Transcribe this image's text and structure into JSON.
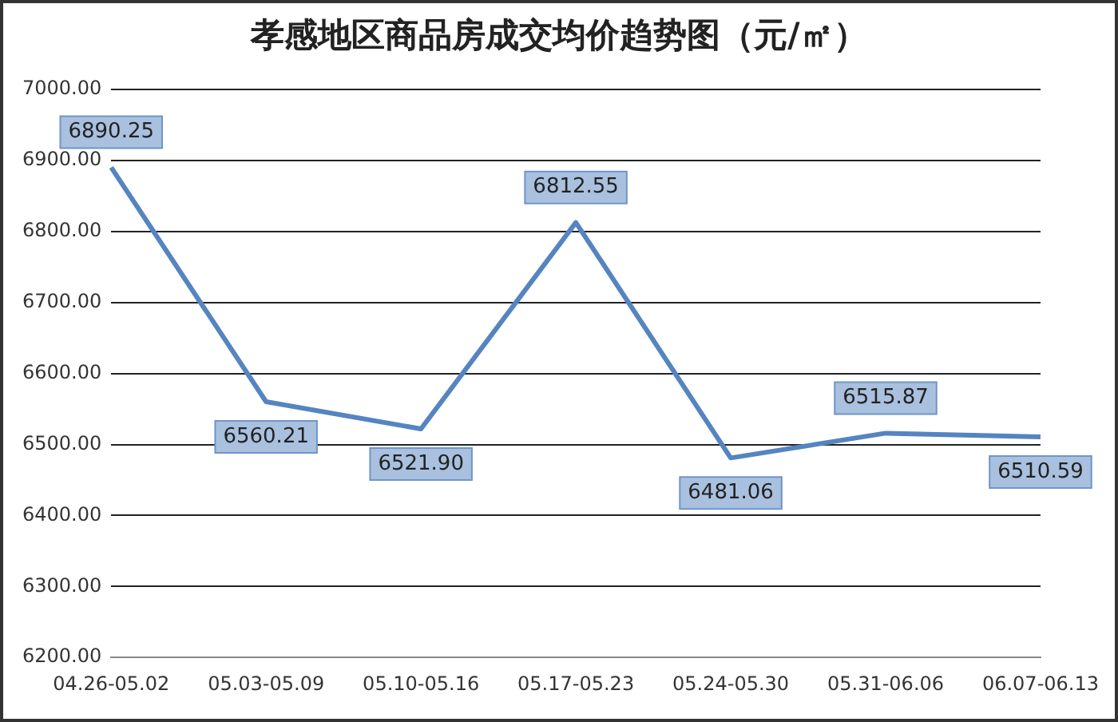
{
  "chart_data": {
    "type": "line",
    "title": "孝感地区商品房成交均价趋势图（元/㎡）",
    "categories": [
      "04.26-05.02",
      "05.03-05.09",
      "05.10-05.16",
      "05.17-05.23",
      "05.24-05.30",
      "05.31-06.06",
      "06.07-06.13"
    ],
    "series": [
      {
        "color": "#5585c0",
        "values": [
          6890.25,
          6560.21,
          6521.9,
          6812.55,
          6481.06,
          6515.87,
          6510.59
        ],
        "value_labels": [
          "6890.25",
          "6560.21",
          "6521.90",
          "6812.55",
          "6481.06",
          "6515.87",
          "6510.59"
        ]
      }
    ],
    "ylim": [
      6200,
      7000
    ],
    "yticks": [
      {
        "value": 6200,
        "label": "6200.00"
      },
      {
        "value": 6300,
        "label": "6300.00"
      },
      {
        "value": 6400,
        "label": "6400.00"
      },
      {
        "value": 6500,
        "label": "6500.00"
      },
      {
        "value": 6600,
        "label": "6600.00"
      },
      {
        "value": 6700,
        "label": "6700.00"
      },
      {
        "value": 6800,
        "label": "6800.00"
      },
      {
        "value": 6900,
        "label": "6900.00"
      },
      {
        "value": 7000,
        "label": "7000.00"
      }
    ],
    "grid": "y",
    "legend": false,
    "marker": "none",
    "line_style": "solid"
  }
}
